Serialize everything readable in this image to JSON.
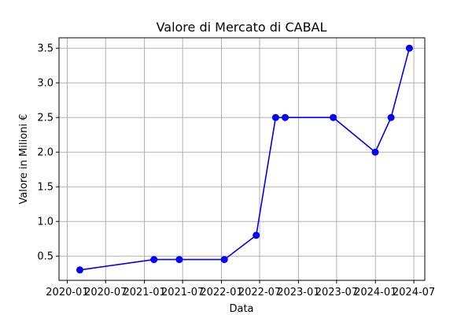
{
  "chart_data": {
    "type": "line",
    "title": "Valore di Mercato di CABAL",
    "xlabel": "Data",
    "ylabel": "Valore in Milioni €",
    "grid": true,
    "x_ticks": [
      "2020-01",
      "2020-07",
      "2021-01",
      "2021-07",
      "2022-01",
      "2022-07",
      "2023-01",
      "2023-07",
      "2024-01",
      "2024-07"
    ],
    "y_ticks": [
      "0.5",
      "1.0",
      "1.5",
      "2.0",
      "2.5",
      "3.0",
      "3.5"
    ],
    "ylim": [
      0.15,
      3.65
    ],
    "xlim": [
      "2019-11-23",
      "2024-08-22"
    ],
    "series": [
      {
        "name": "Valore di Mercato",
        "color": "#0000ff",
        "points": [
          {
            "date": "2020-03-01",
            "value": 0.3
          },
          {
            "date": "2021-02-15",
            "value": 0.45
          },
          {
            "date": "2021-06-15",
            "value": 0.45
          },
          {
            "date": "2022-01-15",
            "value": 0.45
          },
          {
            "date": "2022-06-15",
            "value": 0.8
          },
          {
            "date": "2022-09-15",
            "value": 2.5
          },
          {
            "date": "2022-10-30",
            "value": 2.5
          },
          {
            "date": "2023-06-15",
            "value": 2.5
          },
          {
            "date": "2023-12-31",
            "value": 2.0
          },
          {
            "date": "2024-03-15",
            "value": 2.5
          },
          {
            "date": "2024-06-10",
            "value": 3.5
          }
        ]
      }
    ]
  }
}
